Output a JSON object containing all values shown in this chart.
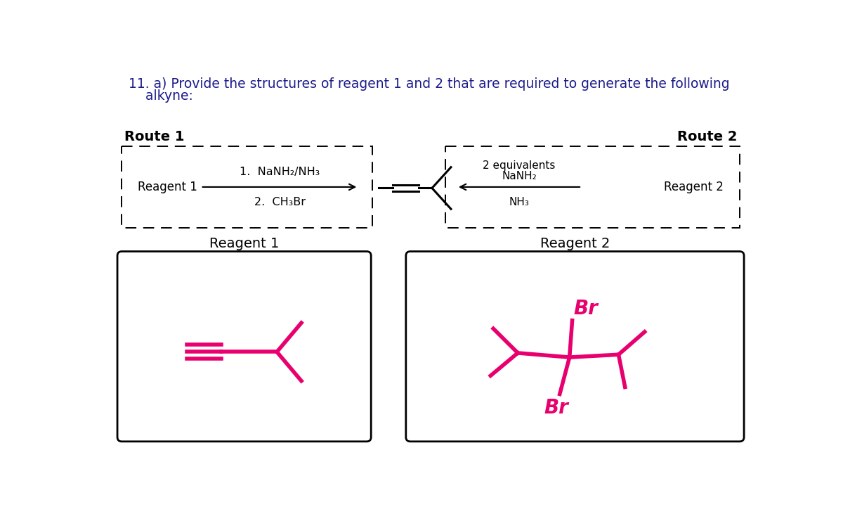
{
  "title_line1": "11. a) Provide the structures of reagent 1 and 2 that are required to generate the following",
  "title_line2": "    alkyne:",
  "title_color": "#1a1a8c",
  "title_fontsize": 13.5,
  "bg_color": "#ffffff",
  "route1_label": "Route 1",
  "route2_label": "Route 2",
  "reagent1_label": "Reagent 1",
  "reagent2_label": "Reagent 2",
  "step1_text": "1.  NaNH₂/NH₃",
  "step2_text": "2.  CH₃Br",
  "route2_text_line1": "2 equivalents",
  "route2_text_line2": "NaNH₂",
  "route2_text_line3": "NH₃",
  "pink_color": "#e8006e",
  "black_color": "#000000",
  "answer_label_fontsize": 14,
  "route_label_fontsize": 14
}
